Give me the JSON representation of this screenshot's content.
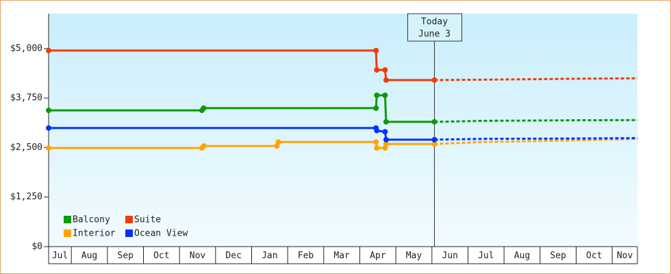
{
  "chart_data": {
    "type": "line",
    "categories": [
      "Jul",
      "Aug",
      "Sep",
      "Oct",
      "Nov",
      "Dec",
      "Jan",
      "Feb",
      "Mar",
      "Apr",
      "May",
      "Jun",
      "Jul",
      "Aug",
      "Sep",
      "Oct",
      "Nov"
    ],
    "xlim": [
      0.37,
      16.7
    ],
    "xticks": [
      1,
      2,
      3,
      4,
      5,
      6,
      7,
      8,
      9,
      10,
      11,
      12,
      13,
      14,
      15,
      16
    ],
    "ylim": [
      0,
      5880
    ],
    "yticks": [
      {
        "value": 0,
        "label": "$0"
      },
      {
        "value": 1250,
        "label": "$1,250"
      },
      {
        "value": 2500,
        "label": "$2,500"
      },
      {
        "value": 3750,
        "label": "$3,750"
      },
      {
        "value": 5000,
        "label": "$5,000"
      }
    ],
    "today": {
      "x": 11.07,
      "label": [
        "Today",
        "June 3"
      ]
    },
    "legend": "lower left",
    "series": [
      {
        "name": "Balcony",
        "color": "#0a9a0a",
        "x": [
          0.37,
          4.62,
          4.67,
          9.45,
          9.47,
          9.7,
          9.73,
          11.07,
          12.43,
          15.3,
          16.7
        ],
        "values": [
          3440,
          3440,
          3495,
          3495,
          3820,
          3820,
          3150,
          3150,
          3175,
          3190,
          3195
        ]
      },
      {
        "name": "Suite",
        "color": "#f03c0a",
        "x": [
          0.37,
          9.45,
          9.47,
          9.7,
          9.73,
          11.07,
          12.43,
          15.3,
          16.7
        ],
        "values": [
          4950,
          4950,
          4460,
          4460,
          4204,
          4204,
          4215,
          4240,
          4250
        ]
      },
      {
        "name": "Interior",
        "color": "#ffa500",
        "x": [
          0.37,
          4.62,
          4.67,
          6.7,
          6.74,
          9.45,
          9.47,
          9.7,
          9.73,
          11.07,
          12.43,
          15.3,
          16.7
        ],
        "values": [
          2490,
          2490,
          2540,
          2540,
          2640,
          2640,
          2490,
          2490,
          2590,
          2590,
          2640,
          2690,
          2720
        ]
      },
      {
        "name": "Ocean View",
        "color": "#0033ff",
        "x": [
          0.37,
          9.45,
          9.47,
          9.7,
          9.73,
          11.07,
          12.43,
          15.3,
          16.7
        ],
        "values": [
          2993,
          2993,
          2930,
          2900,
          2700,
          2700,
          2720,
          2730,
          2740
        ]
      }
    ]
  }
}
